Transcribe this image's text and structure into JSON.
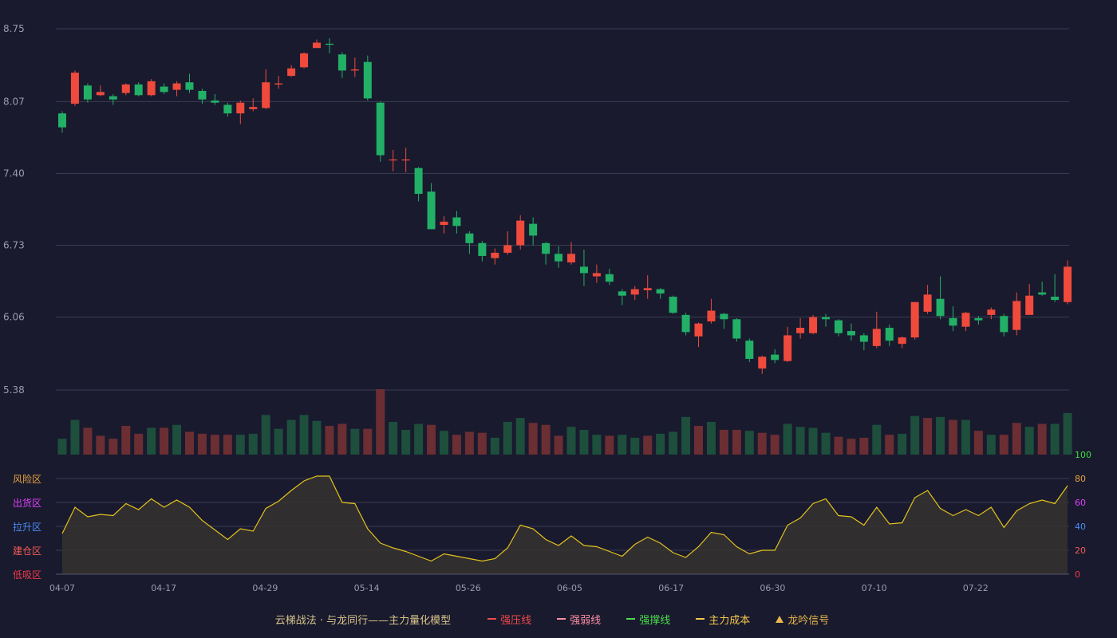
{
  "chart_data": {
    "type": "candlestick",
    "x_ticks": [
      "04-07",
      "04-17",
      "04-29",
      "05-14",
      "05-26",
      "06-05",
      "06-17",
      "06-30",
      "07-10",
      "07-22"
    ],
    "price_axis": {
      "min": 5.38,
      "max": 8.75,
      "ticks": [
        "8.75",
        "8.07",
        "7.40",
        "6.73",
        "6.06",
        "5.38"
      ]
    },
    "oscillator_axis": {
      "min": 0,
      "max": 100,
      "ticks": [
        "100",
        "80",
        "60",
        "40",
        "20",
        "0"
      ]
    },
    "zones": [
      {
        "label": "风险区",
        "level": 80,
        "color": "#e8a33c"
      },
      {
        "label": "出货区",
        "level": 60,
        "color": "#e040fb"
      },
      {
        "label": "拉升区",
        "level": 40,
        "color": "#4b8bf5"
      },
      {
        "label": "建仓区",
        "level": 20,
        "color": "#f25c54"
      },
      {
        "label": "低吸区",
        "level": 0,
        "color": "#f03a47"
      }
    ],
    "candles": [
      [
        7.96,
        7.83,
        7.98,
        7.78
      ],
      [
        8.05,
        8.34,
        8.36,
        8.03
      ],
      [
        8.22,
        8.09,
        8.24,
        8.06
      ],
      [
        8.13,
        8.16,
        8.22,
        8.12
      ],
      [
        8.12,
        8.09,
        8.14,
        8.04
      ],
      [
        8.15,
        8.23,
        8.24,
        8.13
      ],
      [
        8.23,
        8.13,
        8.25,
        8.12
      ],
      [
        8.13,
        8.26,
        8.28,
        8.12
      ],
      [
        8.21,
        8.16,
        8.24,
        8.14
      ],
      [
        8.18,
        8.24,
        8.26,
        8.12
      ],
      [
        8.25,
        8.18,
        8.33,
        8.15
      ],
      [
        8.17,
        8.09,
        8.19,
        8.05
      ],
      [
        8.08,
        8.06,
        8.14,
        8.04
      ],
      [
        8.04,
        7.96,
        8.06,
        7.93
      ],
      [
        7.96,
        8.06,
        8.08,
        7.86
      ],
      [
        8.0,
        8.02,
        8.1,
        7.98
      ],
      [
        8.01,
        8.25,
        8.37,
        8.0
      ],
      [
        8.23,
        8.24,
        8.31,
        8.19
      ],
      [
        8.31,
        8.38,
        8.41,
        8.3
      ],
      [
        8.39,
        8.52,
        8.53,
        8.38
      ],
      [
        8.57,
        8.62,
        8.65,
        8.57
      ],
      [
        8.61,
        8.6,
        8.66,
        8.52
      ],
      [
        8.51,
        8.36,
        8.53,
        8.29
      ],
      [
        8.36,
        8.37,
        8.48,
        8.3
      ],
      [
        8.44,
        8.1,
        8.5,
        8.08
      ],
      [
        8.06,
        7.57,
        8.07,
        7.51
      ],
      [
        7.53,
        7.53,
        7.62,
        7.42
      ],
      [
        7.53,
        7.53,
        7.64,
        7.41
      ],
      [
        7.45,
        7.21,
        7.46,
        7.14
      ],
      [
        7.23,
        6.88,
        7.31,
        6.88
      ],
      [
        6.92,
        6.95,
        7.0,
        6.84
      ],
      [
        6.99,
        6.91,
        7.05,
        6.84
      ],
      [
        6.84,
        6.75,
        6.86,
        6.65
      ],
      [
        6.75,
        6.63,
        6.77,
        6.58
      ],
      [
        6.61,
        6.66,
        6.7,
        6.55
      ],
      [
        6.66,
        6.73,
        6.86,
        6.64
      ],
      [
        6.73,
        6.96,
        7.01,
        6.69
      ],
      [
        6.93,
        6.82,
        6.99,
        6.73
      ],
      [
        6.75,
        6.65,
        6.76,
        6.55
      ],
      [
        6.65,
        6.58,
        6.72,
        6.52
      ],
      [
        6.57,
        6.65,
        6.76,
        6.55
      ],
      [
        6.53,
        6.47,
        6.69,
        6.35
      ],
      [
        6.44,
        6.47,
        6.55,
        6.38
      ],
      [
        6.46,
        6.39,
        6.51,
        6.36
      ],
      [
        6.3,
        6.26,
        6.32,
        6.17
      ],
      [
        6.27,
        6.32,
        6.35,
        6.22
      ],
      [
        6.31,
        6.33,
        6.45,
        6.23
      ],
      [
        6.32,
        6.28,
        6.33,
        6.23
      ],
      [
        6.25,
        6.1,
        6.26,
        6.09
      ],
      [
        6.08,
        5.92,
        6.1,
        5.89
      ],
      [
        5.88,
        6.0,
        6.01,
        5.78
      ],
      [
        6.02,
        6.12,
        6.23,
        6.0
      ],
      [
        6.09,
        6.04,
        6.1,
        5.95
      ],
      [
        6.04,
        5.86,
        6.05,
        5.83
      ],
      [
        5.84,
        5.67,
        5.86,
        5.64
      ],
      [
        5.58,
        5.69,
        5.7,
        5.53
      ],
      [
        5.71,
        5.66,
        5.76,
        5.63
      ],
      [
        5.65,
        5.89,
        5.97,
        5.64
      ],
      [
        5.91,
        5.96,
        6.05,
        5.86
      ],
      [
        5.91,
        6.06,
        6.08,
        5.9
      ],
      [
        6.06,
        6.04,
        6.09,
        5.97
      ],
      [
        6.03,
        5.91,
        6.04,
        5.88
      ],
      [
        5.93,
        5.89,
        6.0,
        5.84
      ],
      [
        5.89,
        5.83,
        5.91,
        5.75
      ],
      [
        5.79,
        5.95,
        6.11,
        5.77
      ],
      [
        5.96,
        5.84,
        5.99,
        5.79
      ],
      [
        5.81,
        5.87,
        5.88,
        5.77
      ],
      [
        5.87,
        6.2,
        6.2,
        5.85
      ],
      [
        6.11,
        6.27,
        6.36,
        6.09
      ],
      [
        6.23,
        6.07,
        6.44,
        6.04
      ],
      [
        6.05,
        5.98,
        6.16,
        5.93
      ],
      [
        5.97,
        6.1,
        6.11,
        5.93
      ],
      [
        6.05,
        6.03,
        6.07,
        5.99
      ],
      [
        6.08,
        6.13,
        6.15,
        6.04
      ],
      [
        6.07,
        5.92,
        6.09,
        5.88
      ],
      [
        5.94,
        6.21,
        6.29,
        5.89
      ],
      [
        6.08,
        6.26,
        6.37,
        6.08
      ],
      [
        6.29,
        6.27,
        6.39,
        6.26
      ],
      [
        6.25,
        6.22,
        6.46,
        6.2
      ],
      [
        6.2,
        6.53,
        6.59,
        6.18
      ]
    ],
    "volumes": [
      [
        16,
        "down"
      ],
      [
        35,
        "down"
      ],
      [
        27,
        "up"
      ],
      [
        19,
        "up"
      ],
      [
        16,
        "up"
      ],
      [
        29,
        "up"
      ],
      [
        21,
        "up"
      ],
      [
        27,
        "down"
      ],
      [
        27,
        "up"
      ],
      [
        30,
        "down"
      ],
      [
        23,
        "up"
      ],
      [
        21,
        "up"
      ],
      [
        20,
        "up"
      ],
      [
        20,
        "up"
      ],
      [
        20,
        "down"
      ],
      [
        21,
        "down"
      ],
      [
        40,
        "down"
      ],
      [
        26,
        "down"
      ],
      [
        35,
        "down"
      ],
      [
        40,
        "down"
      ],
      [
        34,
        "down"
      ],
      [
        29,
        "up"
      ],
      [
        31,
        "up"
      ],
      [
        26,
        "down"
      ],
      [
        26,
        "up"
      ],
      [
        66,
        "up"
      ],
      [
        33,
        "down"
      ],
      [
        25,
        "down"
      ],
      [
        31,
        "down"
      ],
      [
        30,
        "up"
      ],
      [
        24,
        "down"
      ],
      [
        20,
        "up"
      ],
      [
        23,
        "up"
      ],
      [
        22,
        "up"
      ],
      [
        17,
        "down"
      ],
      [
        33,
        "down"
      ],
      [
        37,
        "down"
      ],
      [
        32,
        "up"
      ],
      [
        30,
        "up"
      ],
      [
        19,
        "up"
      ],
      [
        28,
        "down"
      ],
      [
        25,
        "down"
      ],
      [
        20,
        "down"
      ],
      [
        19,
        "up"
      ],
      [
        20,
        "down"
      ],
      [
        17,
        "down"
      ],
      [
        19,
        "up"
      ],
      [
        21,
        "down"
      ],
      [
        23,
        "down"
      ],
      [
        38,
        "down"
      ],
      [
        29,
        "up"
      ],
      [
        33,
        "down"
      ],
      [
        25,
        "up"
      ],
      [
        25,
        "up"
      ],
      [
        24,
        "down"
      ],
      [
        22,
        "up"
      ],
      [
        20,
        "up"
      ],
      [
        31,
        "down"
      ],
      [
        28,
        "down"
      ],
      [
        27,
        "down"
      ],
      [
        22,
        "down"
      ],
      [
        18,
        "up"
      ],
      [
        16,
        "up"
      ],
      [
        17,
        "up"
      ],
      [
        30,
        "down"
      ],
      [
        20,
        "up"
      ],
      [
        21,
        "down"
      ],
      [
        39,
        "down"
      ],
      [
        37,
        "up"
      ],
      [
        38,
        "down"
      ],
      [
        35,
        "up"
      ],
      [
        35,
        "down"
      ],
      [
        24,
        "up"
      ],
      [
        20,
        "down"
      ],
      [
        20,
        "up"
      ],
      [
        32,
        "up"
      ],
      [
        28,
        "down"
      ],
      [
        31,
        "up"
      ],
      [
        31,
        "down"
      ],
      [
        42,
        "down"
      ]
    ],
    "oscillator": [
      34,
      56,
      48,
      50,
      49,
      59,
      54,
      63,
      56,
      62,
      56,
      45,
      37,
      29,
      38,
      36,
      55,
      61,
      70,
      78,
      82,
      82,
      60,
      59,
      38,
      26,
      22,
      19,
      15,
      11,
      17,
      15,
      13,
      11,
      13,
      22,
      41,
      38,
      29,
      24,
      32,
      24,
      23,
      19,
      15,
      25,
      31,
      26,
      18,
      14,
      23,
      35,
      33,
      23,
      17,
      20,
      20,
      41,
      47,
      59,
      63,
      49,
      48,
      41,
      56,
      42,
      43,
      64,
      70,
      55,
      49,
      54,
      49,
      56,
      39,
      53,
      59,
      62,
      59,
      74
    ],
    "legend": {
      "title": "云梯战法 · 与龙同行——主力量化模型",
      "items": [
        {
          "label": "强压线",
          "color": "#f04a4a",
          "style": "solid"
        },
        {
          "label": "强弱线",
          "color": "#ff8fa3",
          "style": "dashed"
        },
        {
          "label": "强撑线",
          "color": "#4cdc4c",
          "style": "solid"
        },
        {
          "label": "主力成本",
          "color": "#f5c84a",
          "style": "dashed"
        },
        {
          "label": "龙吟信号",
          "color": "#e8b64a",
          "style": "triangle"
        }
      ]
    },
    "colors": {
      "background": "#191a2e",
      "up": "#ef4a3c",
      "down": "#22b067",
      "volume_up": "#6b2e33",
      "volume_down": "#1d4f3c",
      "grid": "#3a3c52",
      "axis_text": "#9a9cab",
      "oscillator_line": "#e3c21d",
      "oscillator_fill": "#36322f",
      "osc_axis_100": "#3ddc3d"
    }
  }
}
